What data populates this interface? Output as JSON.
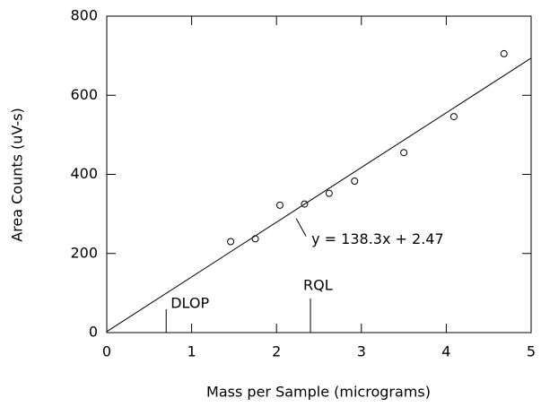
{
  "chart_data": {
    "type": "scatter",
    "x_label": "Mass per Sample (micrograms)",
    "y_label": "Area Counts (uV-s)",
    "x": [
      1.46,
      1.75,
      2.04,
      2.33,
      2.62,
      2.92,
      3.5,
      4.09,
      4.68
    ],
    "values": [
      230,
      237,
      322,
      325,
      352,
      383,
      455,
      546,
      705
    ],
    "xlim": [
      0,
      5
    ],
    "ylim": [
      0,
      800
    ],
    "xticks": [
      0,
      1,
      2,
      3,
      4,
      5
    ],
    "yticks": [
      0,
      200,
      400,
      600,
      800
    ],
    "fit": {
      "slope": 138.3,
      "intercept": 2.47,
      "label": "y = 138.3x + 2.47"
    },
    "annotations": [
      {
        "text": "DLOP",
        "x": 0.7
      },
      {
        "text": "RQL",
        "x": 2.4
      }
    ]
  }
}
